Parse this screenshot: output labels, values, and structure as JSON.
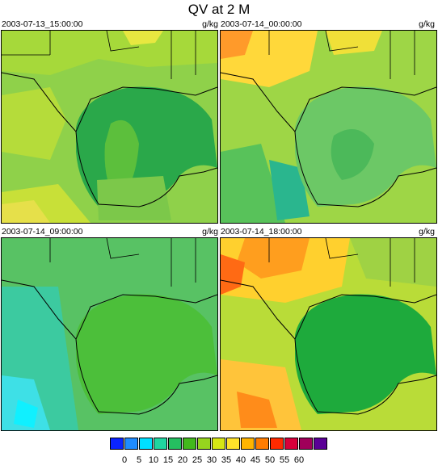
{
  "title": "QV at 2 M",
  "panels": [
    {
      "time": "2003-07-13_15:00:00",
      "units": "g/kg"
    },
    {
      "time": "2003-07-14_00:00:00",
      "units": "g/kg"
    },
    {
      "time": "2003-07-14_09:00:00",
      "units": "g/kg"
    },
    {
      "time": "2003-07-14_18:00:00",
      "units": "g/kg"
    }
  ],
  "colorbar": {
    "ticks": [
      "0",
      "5",
      "10",
      "15",
      "20",
      "25",
      "30",
      "35",
      "40",
      "45",
      "50",
      "55",
      "60"
    ],
    "colors": [
      "#0a24ff",
      "#1e8cff",
      "#00e0ff",
      "#1fd6a0",
      "#25c060",
      "#42b81c",
      "#96d41e",
      "#d6e614",
      "#ffe22a",
      "#ffb400",
      "#ff7c00",
      "#ff2a00",
      "#d7003a",
      "#a0005a",
      "#5a0096"
    ]
  }
}
